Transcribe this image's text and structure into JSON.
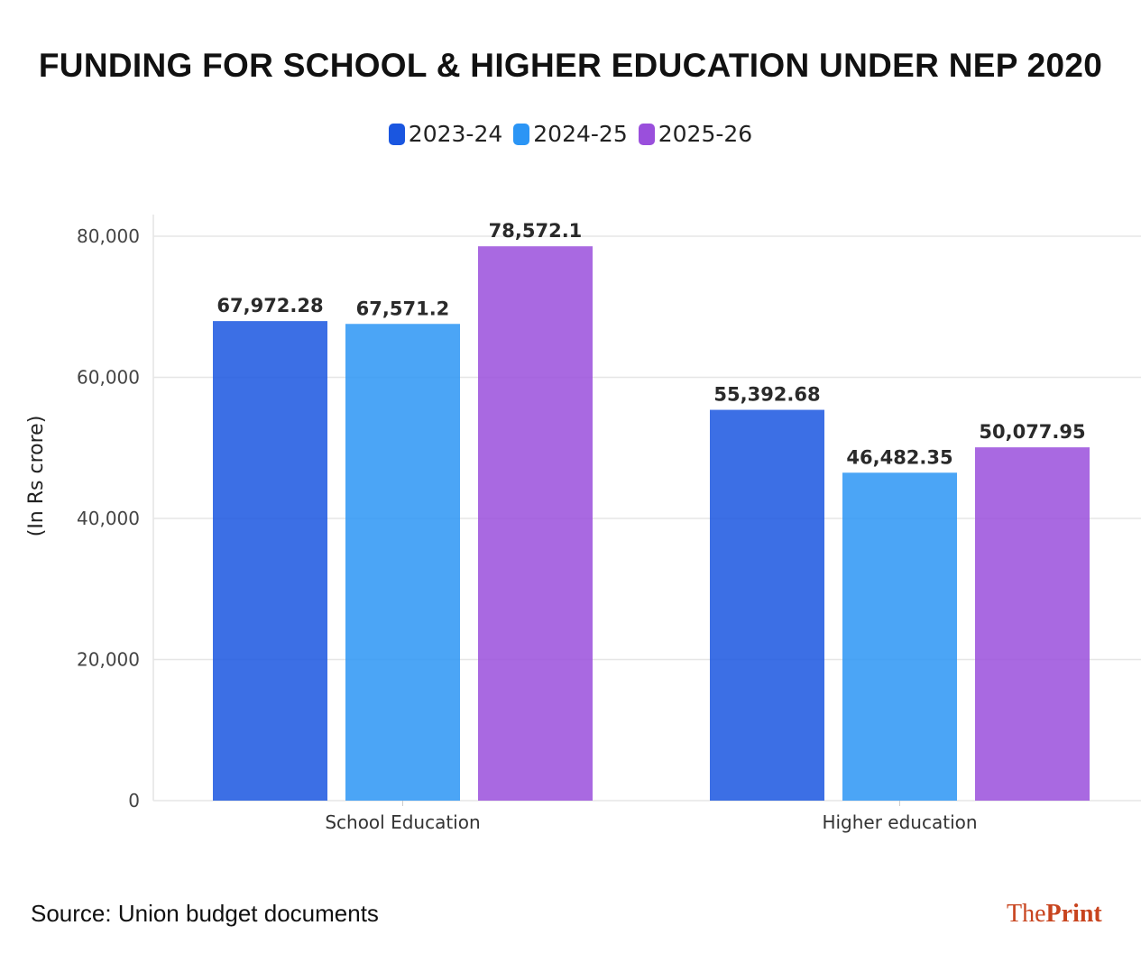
{
  "chart_data": {
    "type": "bar",
    "title": "FUNDING FOR SCHOOL & HIGHER EDUCATION UNDER NEP 2020",
    "ylabel": "(In Rs crore)",
    "xlabel": "",
    "categories": [
      "School Education",
      "Higher education"
    ],
    "series": [
      {
        "name": "2023-24",
        "color": "#1a56e0",
        "values": [
          67972.28,
          55392.68
        ],
        "labels": [
          "67,972.28",
          "55,392.68"
        ]
      },
      {
        "name": "2024-25",
        "color": "#2b95f5",
        "values": [
          67571.2,
          46482.35
        ],
        "labels": [
          "67,571.2",
          "46,482.35"
        ]
      },
      {
        "name": "2025-26",
        "color": "#9a4fdc",
        "values": [
          78572.1,
          50077.95
        ],
        "labels": [
          "78,572.1",
          "50,077.95"
        ]
      }
    ],
    "ylim": [
      0,
      80000
    ],
    "yticks": [
      0,
      20000,
      40000,
      60000,
      80000
    ],
    "ytick_labels": [
      "0",
      "20,000",
      "40,000",
      "60,000",
      "80,000"
    ],
    "grid": true,
    "legend_position": "top-center"
  },
  "footer": {
    "source": "Source: Union budget documents",
    "logo_the": "The",
    "logo_print": "Print"
  }
}
